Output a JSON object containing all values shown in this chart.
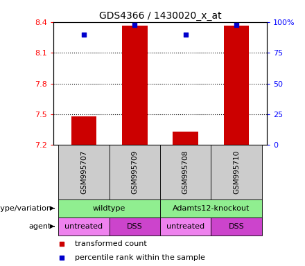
{
  "title": "GDS4366 / 1430020_x_at",
  "samples": [
    "GSM995707",
    "GSM995709",
    "GSM995708",
    "GSM995710"
  ],
  "bar_values": [
    7.48,
    8.37,
    7.33,
    8.37
  ],
  "bar_base": 7.2,
  "percentile_values": [
    90,
    98,
    90,
    98
  ],
  "bar_color": "#cc0000",
  "dot_color": "#0000cc",
  "ylim_left": [
    7.2,
    8.4
  ],
  "ylim_right": [
    0,
    100
  ],
  "yticks_left": [
    7.2,
    7.5,
    7.8,
    8.1,
    8.4
  ],
  "yticks_right": [
    0,
    25,
    50,
    75,
    100
  ],
  "ytick_labels_right": [
    "0",
    "25",
    "50",
    "75",
    "100%"
  ],
  "hline_values": [
    7.5,
    7.8,
    8.1
  ],
  "genotype_labels": [
    "wildtype",
    "Adamts12-knockout"
  ],
  "genotype_color": "#90ee90",
  "agent_labels": [
    "untreated",
    "DSS",
    "untreated",
    "DSS"
  ],
  "agent_color_untreated": "#ee82ee",
  "agent_color_dss": "#cc44cc",
  "sample_bg_color": "#cccccc",
  "legend_red_label": "transformed count",
  "legend_blue_label": "percentile rank within the sample",
  "bar_width": 0.5,
  "left_label": "genotype/variation",
  "agent_label": "agent"
}
